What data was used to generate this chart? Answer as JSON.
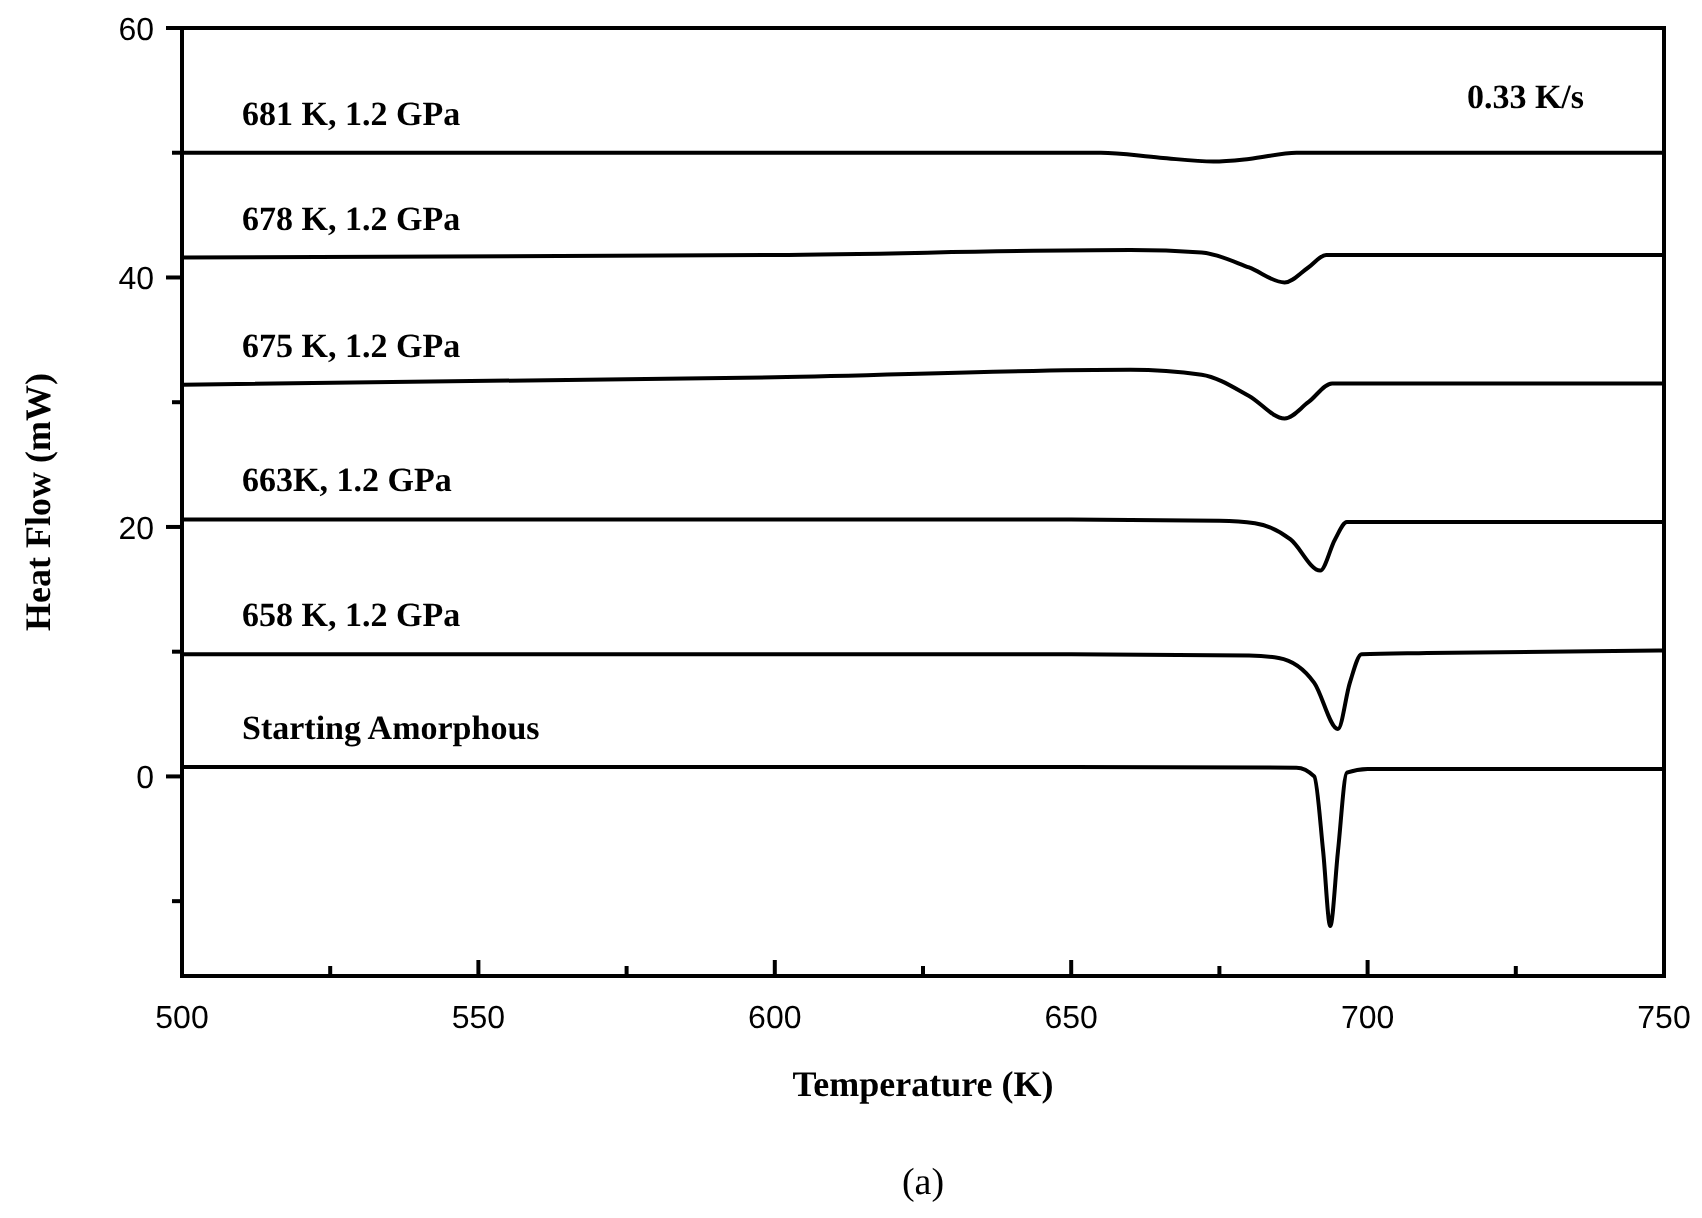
{
  "chart_data": {
    "type": "line",
    "xlabel": "Temperature (K)",
    "ylabel": "Heat Flow (mW)",
    "xlim": [
      500,
      750
    ],
    "xticks": [
      500,
      {
        "value": 525,
        "label": null
      },
      550,
      {
        "value": 575,
        "label": null
      },
      600,
      {
        "value": 625,
        "label": null
      },
      650,
      {
        "value": 675,
        "label": null
      },
      700,
      {
        "value": 725,
        "label": null
      },
      750
    ],
    "ylim": [
      -16,
      60
    ],
    "yticks": [
      {
        "value": -10,
        "label": null
      },
      0,
      {
        "value": 10,
        "label": null
      },
      20,
      {
        "value": 30,
        "label": null
      },
      40,
      {
        "value": 50,
        "label": null
      },
      60
    ],
    "annotations": [
      "0.33 K/s",
      "(a)"
    ],
    "series": [
      {
        "name": "681 K, 1.2 GPa",
        "color": "#000000",
        "x": [
          500,
          600,
          655,
          665,
          674,
          680,
          688,
          700,
          750
        ],
        "values": [
          50,
          50,
          50,
          49.6,
          49.3,
          49.5,
          50,
          50,
          50
        ]
      },
      {
        "name": "678 K, 1.2 GPa",
        "color": "#000000",
        "x": [
          500,
          600,
          660,
          672,
          680,
          686,
          690,
          693,
          700,
          750
        ],
        "values": [
          41.6,
          41.8,
          42.2,
          42,
          40.8,
          39.6,
          40.8,
          41.8,
          41.8,
          41.8
        ]
      },
      {
        "name": "675 K, 1.2 GPa",
        "color": "#000000",
        "x": [
          500,
          600,
          660,
          672,
          680,
          686,
          690,
          694,
          700,
          750
        ],
        "values": [
          31.4,
          32,
          32.6,
          32.2,
          30.5,
          28.7,
          30,
          31.5,
          31.5,
          31.5
        ]
      },
      {
        "name": "663K, 1.2 GPa",
        "color": "#000000",
        "x": [
          500,
          650,
          675,
          681,
          687,
          692,
          694.5,
          696.5,
          710,
          750
        ],
        "values": [
          20.6,
          20.6,
          20.5,
          20.3,
          19,
          16.5,
          19,
          20.4,
          20.4,
          20.4
        ]
      },
      {
        "name": "658 K, 1.2 GPa",
        "color": "#000000",
        "x": [
          500,
          650,
          680,
          685,
          691,
          695,
          697,
          699,
          710,
          750
        ],
        "values": [
          9.8,
          9.8,
          9.7,
          9.5,
          7.5,
          3.8,
          7.5,
          9.8,
          9.9,
          10.1
        ]
      },
      {
        "name": "Starting Amorphous",
        "color": "#000000",
        "x": [
          500,
          650,
          688,
          691,
          692.5,
          693.7,
          695,
          696.5,
          700,
          750
        ],
        "values": [
          0.75,
          0.75,
          0.7,
          0,
          -6,
          -12,
          -6,
          0.3,
          0.6,
          0.6
        ]
      }
    ]
  }
}
